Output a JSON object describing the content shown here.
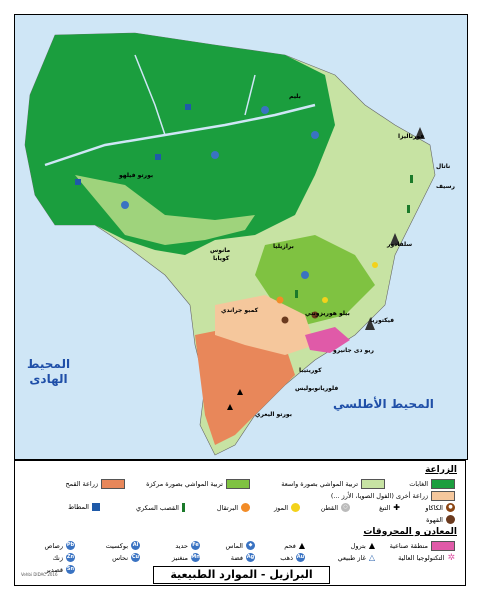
{
  "map": {
    "title": "البرازيل - الموارد الطبيعية",
    "credit": "Vehbi DIDAC 2016",
    "oceans": {
      "pacific_line1": "المحيط",
      "pacific_line2": "الهادى",
      "atlantic": "المحيط الأطلسي"
    },
    "cities": [
      {
        "id": "manaus",
        "name": "مانوس"
      },
      {
        "id": "belem",
        "name": "بليم"
      },
      {
        "id": "fortaleza",
        "name": "فورتاليزا"
      },
      {
        "id": "natal",
        "name": "ناتال"
      },
      {
        "id": "recife",
        "name": "رسيف"
      },
      {
        "id": "salvador",
        "name": "سلفادور"
      },
      {
        "id": "porto_velho",
        "name": "بورتو فيلهو"
      },
      {
        "id": "cuiaba",
        "name": "كويابا"
      },
      {
        "id": "brasilia",
        "name": "برازيليا"
      },
      {
        "id": "belo_horizonte",
        "name": "بيلو هوريزونتي"
      },
      {
        "id": "vitoria",
        "name": "فيكتوريا"
      },
      {
        "id": "campo_grande",
        "name": "كمبو جراندي"
      },
      {
        "id": "rio",
        "name": "ريو دى جانيرو"
      },
      {
        "id": "curitiba",
        "name": "كوريتيبا"
      },
      {
        "id": "florianopolis",
        "name": "فلوريانوبوليس"
      },
      {
        "id": "porto_alegre",
        "name": "بورتو اليغري"
      }
    ],
    "colors": {
      "ocean": "#cfe6f6",
      "forest": "#1b9e3e",
      "forest_light": "#9fd37c",
      "cattle": "#c7e3a3",
      "cattle_intense": "#7fc241",
      "wheat": "#e8875a",
      "other_agri": "#f5c79c",
      "industrial": "#e05aa8"
    }
  },
  "legend": {
    "agriculture_title": "الزراعة",
    "minerals_title": "المعادن و المحروقات",
    "agri_items": [
      {
        "label": "الغابات",
        "color": "#1b9e3e"
      },
      {
        "label": "تربية المواشي بصورة واسعة",
        "color": "#c7e3a3"
      },
      {
        "label": "تربية المواشي بصورة مركزة",
        "color": "#7fc241"
      },
      {
        "label": "زراعة القمح",
        "color": "#e8875a"
      },
      {
        "label": "زراعة أخرى (الفول الصويا، الأرز ...)",
        "color": "#f5c79c"
      }
    ],
    "crop_items": [
      {
        "label": "الكاكاو",
        "icon": "cacao-icon"
      },
      {
        "label": "التبغ",
        "icon": "tobacco-icon"
      },
      {
        "label": "القطن",
        "icon": "cotton-icon"
      },
      {
        "label": "الموز",
        "icon": "banana-icon"
      },
      {
        "label": "البرتقال",
        "icon": "orange-icon"
      },
      {
        "label": "القصب السكري",
        "icon": "sugarcane-icon"
      },
      {
        "label": "المطاط",
        "icon": "rubber-icon"
      },
      {
        "label": "القهوة",
        "icon": "coffee-icon"
      }
    ],
    "mineral_items": [
      {
        "label": "منطقة صناعية",
        "icon": "industrial-zone-icon"
      },
      {
        "label": "التكنولوجيا العالية",
        "icon": "hightech-icon"
      },
      {
        "label": "بترول",
        "icon": "oil-icon"
      },
      {
        "label": "غاز طبيعي",
        "icon": "gas-icon"
      },
      {
        "label": "فحم",
        "icon": "coal-icon"
      },
      {
        "label": "ذهب",
        "icon": "gold-icon"
      },
      {
        "label": "الماس",
        "icon": "diamond-icon"
      },
      {
        "label": "فضة",
        "icon": "silver-icon"
      },
      {
        "label": "حديد",
        "icon": "iron-icon"
      },
      {
        "label": "منغنيز",
        "icon": "manganese-icon"
      },
      {
        "label": "بوكسيت",
        "icon": "bauxite-icon"
      },
      {
        "label": "نحاس",
        "icon": "copper-icon"
      },
      {
        "label": "رصاص",
        "icon": "lead-icon"
      },
      {
        "label": "زنك",
        "icon": "zinc-icon"
      },
      {
        "label": "قصدير",
        "icon": "tin-icon"
      }
    ]
  }
}
